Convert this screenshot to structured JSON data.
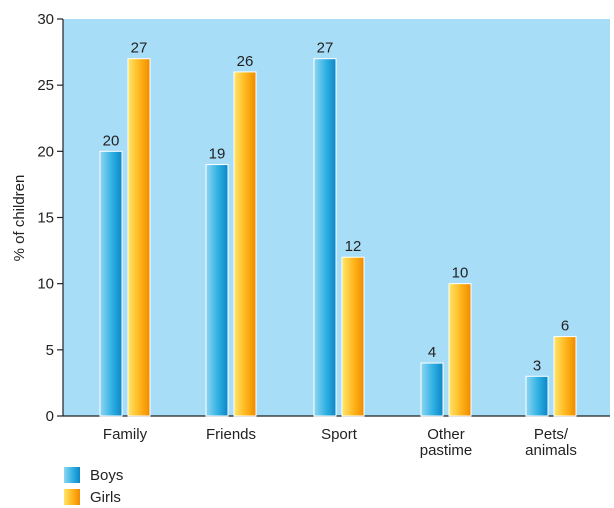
{
  "chart_data": {
    "type": "bar",
    "categories": [
      "Family",
      "Friends",
      "Sport",
      "Other pastime",
      "Pets/ animals"
    ],
    "category_lines": [
      [
        "Family"
      ],
      [
        "Friends"
      ],
      [
        "Sport"
      ],
      [
        "Other",
        "pastime"
      ],
      [
        "Pets/",
        "animals"
      ]
    ],
    "series": [
      {
        "name": "Boys",
        "values": [
          20,
          19,
          27,
          4,
          3
        ]
      },
      {
        "name": "Girls",
        "values": [
          27,
          26,
          12,
          10,
          6
        ]
      }
    ],
    "ylabel": "% of children",
    "ylim": [
      0,
      30
    ],
    "yticks": [
      0,
      5,
      10,
      15,
      20,
      25,
      30
    ],
    "grid": false,
    "legend_position": "bottom-left",
    "colors": {
      "plot_background": "#A8DDF7",
      "boys": "#1AA5DD",
      "girls": "#FFA000",
      "axis": "#222222"
    }
  }
}
